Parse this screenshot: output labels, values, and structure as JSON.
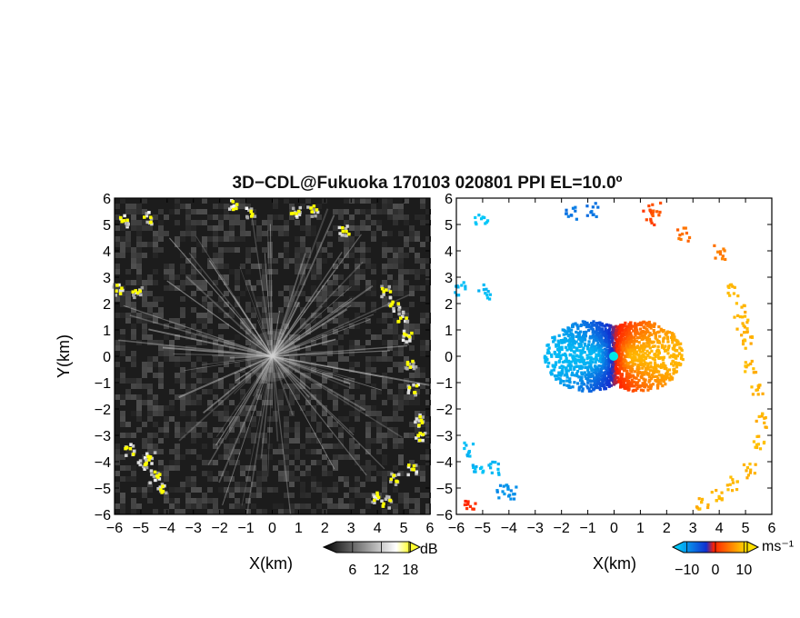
{
  "figure": {
    "title": "3D−CDL@Fukuoka 170103 020801 PPI EL=10.0º"
  },
  "chart_data": [
    {
      "type": "heatmap",
      "panel": "left",
      "xlabel": "X(km)",
      "ylabel": "Y(km)",
      "xlim": [
        -6,
        6
      ],
      "ylim": [
        -6,
        6
      ],
      "xticks": [
        "−6",
        "−5",
        "−4",
        "−3",
        "−2",
        "−1",
        "0",
        "1",
        "2",
        "3",
        "4",
        "5",
        "6"
      ],
      "yticks": [
        "−6",
        "−5",
        "−4",
        "−3",
        "−2",
        "−1",
        "0",
        "1",
        "2",
        "3",
        "4",
        "5",
        "6"
      ],
      "colorbar": {
        "unit": "dB",
        "ticks": [
          "6",
          "12",
          "18"
        ],
        "colors": [
          "#000000",
          "#ffffff",
          "#ffff00"
        ],
        "range": [
          0,
          20
        ]
      },
      "background": "#1c1c1c",
      "highlight_color": "#ffff00",
      "echo_clusters": [
        {
          "x": -5.7,
          "y": 5.2
        },
        {
          "x": -4.8,
          "y": 5.3
        },
        {
          "x": -1.5,
          "y": 5.8
        },
        {
          "x": -0.9,
          "y": 5.5
        },
        {
          "x": 0.8,
          "y": 5.5
        },
        {
          "x": 1.5,
          "y": 5.6
        },
        {
          "x": 2.7,
          "y": 4.8
        },
        {
          "x": -5.9,
          "y": 2.6
        },
        {
          "x": -5.2,
          "y": 2.5
        },
        {
          "x": 4.3,
          "y": 2.5
        },
        {
          "x": 4.6,
          "y": 2.0
        },
        {
          "x": 4.9,
          "y": 1.5
        },
        {
          "x": 5.1,
          "y": 0.8
        },
        {
          "x": 5.2,
          "y": -0.3
        },
        {
          "x": 5.3,
          "y": -1.2
        },
        {
          "x": 5.5,
          "y": -2.4
        },
        {
          "x": 5.6,
          "y": -3.0
        },
        {
          "x": 5.3,
          "y": -4.2
        },
        {
          "x": 4.6,
          "y": -4.6
        },
        {
          "x": 3.9,
          "y": -5.3
        },
        {
          "x": 4.3,
          "y": -5.5
        },
        {
          "x": -5.5,
          "y": -3.5
        },
        {
          "x": -5.0,
          "y": -4.0
        },
        {
          "x": -4.7,
          "y": -3.8
        },
        {
          "x": -4.3,
          "y": -5.0
        },
        {
          "x": -4.5,
          "y": -4.5
        }
      ]
    },
    {
      "type": "scatter",
      "panel": "right",
      "xlabel": "X(km)",
      "ylabel": "",
      "xlim": [
        -6,
        6
      ],
      "ylim": [
        -6,
        6
      ],
      "xticks": [
        "−6",
        "−5",
        "−4",
        "−3",
        "−2",
        "−1",
        "0",
        "1",
        "2",
        "3",
        "4",
        "5",
        "6"
      ],
      "yticks": [
        "−6",
        "−5",
        "−4",
        "−3",
        "−2",
        "−1",
        "0",
        "1",
        "2",
        "3",
        "4",
        "5",
        "6"
      ],
      "colorbar": {
        "unit": "ms⁻¹",
        "ticks": [
          "−10",
          "0",
          "10"
        ],
        "range": [
          -15,
          15
        ],
        "colors": [
          "#00d8ff",
          "#1040e0",
          "#ff3010",
          "#ffe000"
        ]
      },
      "center_marker_color": "#00e8e8",
      "clusters": [
        {
          "x": -5.1,
          "y": 5.2,
          "v": -13
        },
        {
          "x": -1.7,
          "y": 5.5,
          "v": -7
        },
        {
          "x": -0.9,
          "y": 5.6,
          "v": -7
        },
        {
          "x": 1.3,
          "y": 5.3,
          "v": 4
        },
        {
          "x": 1.5,
          "y": 5.6,
          "v": 5
        },
        {
          "x": 2.6,
          "y": 4.7,
          "v": 7
        },
        {
          "x": 4.0,
          "y": 4.0,
          "v": 8
        },
        {
          "x": -5.9,
          "y": 2.6,
          "v": -12
        },
        {
          "x": -5.0,
          "y": 2.5,
          "v": -12
        },
        {
          "x": 4.5,
          "y": 2.5,
          "v": 12
        },
        {
          "x": 4.7,
          "y": 1.8,
          "v": 12
        },
        {
          "x": 4.8,
          "y": 1.2,
          "v": 12
        },
        {
          "x": 5.0,
          "y": 0.6,
          "v": 12
        },
        {
          "x": 5.1,
          "y": -0.3,
          "v": 12
        },
        {
          "x": 5.4,
          "y": -1.2,
          "v": 12
        },
        {
          "x": 5.6,
          "y": -2.4,
          "v": 12
        },
        {
          "x": 5.5,
          "y": -3.2,
          "v": 12
        },
        {
          "x": 5.1,
          "y": -4.3,
          "v": 12
        },
        {
          "x": 4.5,
          "y": -4.8,
          "v": 12
        },
        {
          "x": 3.9,
          "y": -5.3,
          "v": 12
        },
        {
          "x": 3.3,
          "y": -5.6,
          "v": 12
        },
        {
          "x": -5.6,
          "y": -3.5,
          "v": -12
        },
        {
          "x": -5.2,
          "y": -4.2,
          "v": -12
        },
        {
          "x": -4.6,
          "y": -4.2,
          "v": -12
        },
        {
          "x": -4.3,
          "y": -5.1,
          "v": -9
        },
        {
          "x": -4.0,
          "y": -5.1,
          "v": -9
        },
        {
          "x": -5.5,
          "y": -5.5,
          "v": 2
        }
      ]
    }
  ]
}
